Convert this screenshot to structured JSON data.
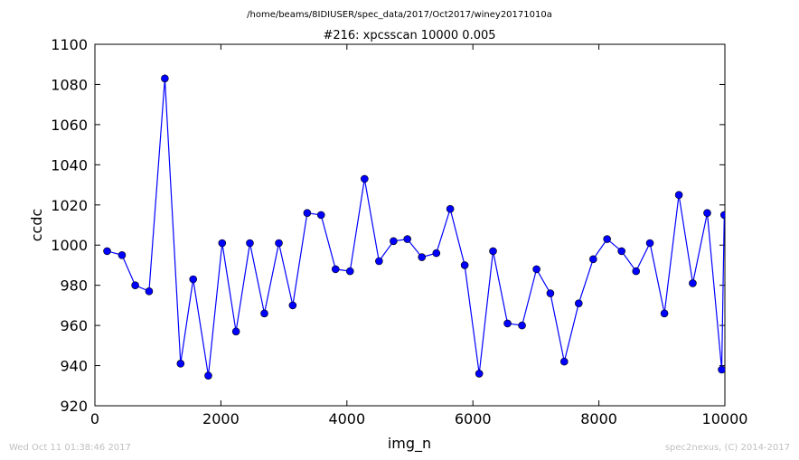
{
  "chart_data": {
    "type": "line",
    "suptitle": "/home/beams/8IDIUSER/spec_data/2017/Oct2017/winey20171010a",
    "title": "#216: xpcsscan 10000 0.005",
    "xlabel": "img_n",
    "ylabel": "ccdc",
    "xlim": [
      0,
      10000
    ],
    "ylim": [
      920,
      1100
    ],
    "xticks": [
      0,
      2000,
      4000,
      6000,
      8000,
      10000
    ],
    "yticks": [
      920,
      940,
      960,
      980,
      1000,
      1020,
      1040,
      1060,
      1080,
      1100
    ],
    "grid": false,
    "line_color": "#0000ff",
    "marker_color": "#0000ff",
    "x": [
      194,
      430,
      640,
      860,
      1110,
      1360,
      1560,
      1800,
      2020,
      2240,
      2460,
      2690,
      2920,
      3140,
      3370,
      3590,
      3820,
      4050,
      4280,
      4510,
      4740,
      4960,
      5190,
      5420,
      5640,
      5870,
      6100,
      6320,
      6550,
      6780,
      7010,
      7230,
      7450,
      7680,
      7910,
      8130,
      8360,
      8590,
      8810,
      9040,
      9270,
      9490,
      9720,
      9950,
      9990
    ],
    "y": [
      997,
      995,
      980,
      977,
      1083,
      941,
      983,
      935,
      1001,
      957,
      1001,
      966,
      1001,
      970,
      1016,
      1015,
      988,
      987,
      1033,
      992,
      1002,
      1003,
      994,
      996,
      1018,
      990,
      936,
      997,
      961,
      960,
      988,
      976,
      942,
      971,
      993,
      1003,
      997,
      987,
      1001,
      966,
      1025,
      981,
      1016,
      938,
      1015
    ]
  },
  "footer": {
    "left": "Wed Oct 11 01:38:46 2017",
    "right": "spec2nexus, (C) 2014-2017"
  }
}
